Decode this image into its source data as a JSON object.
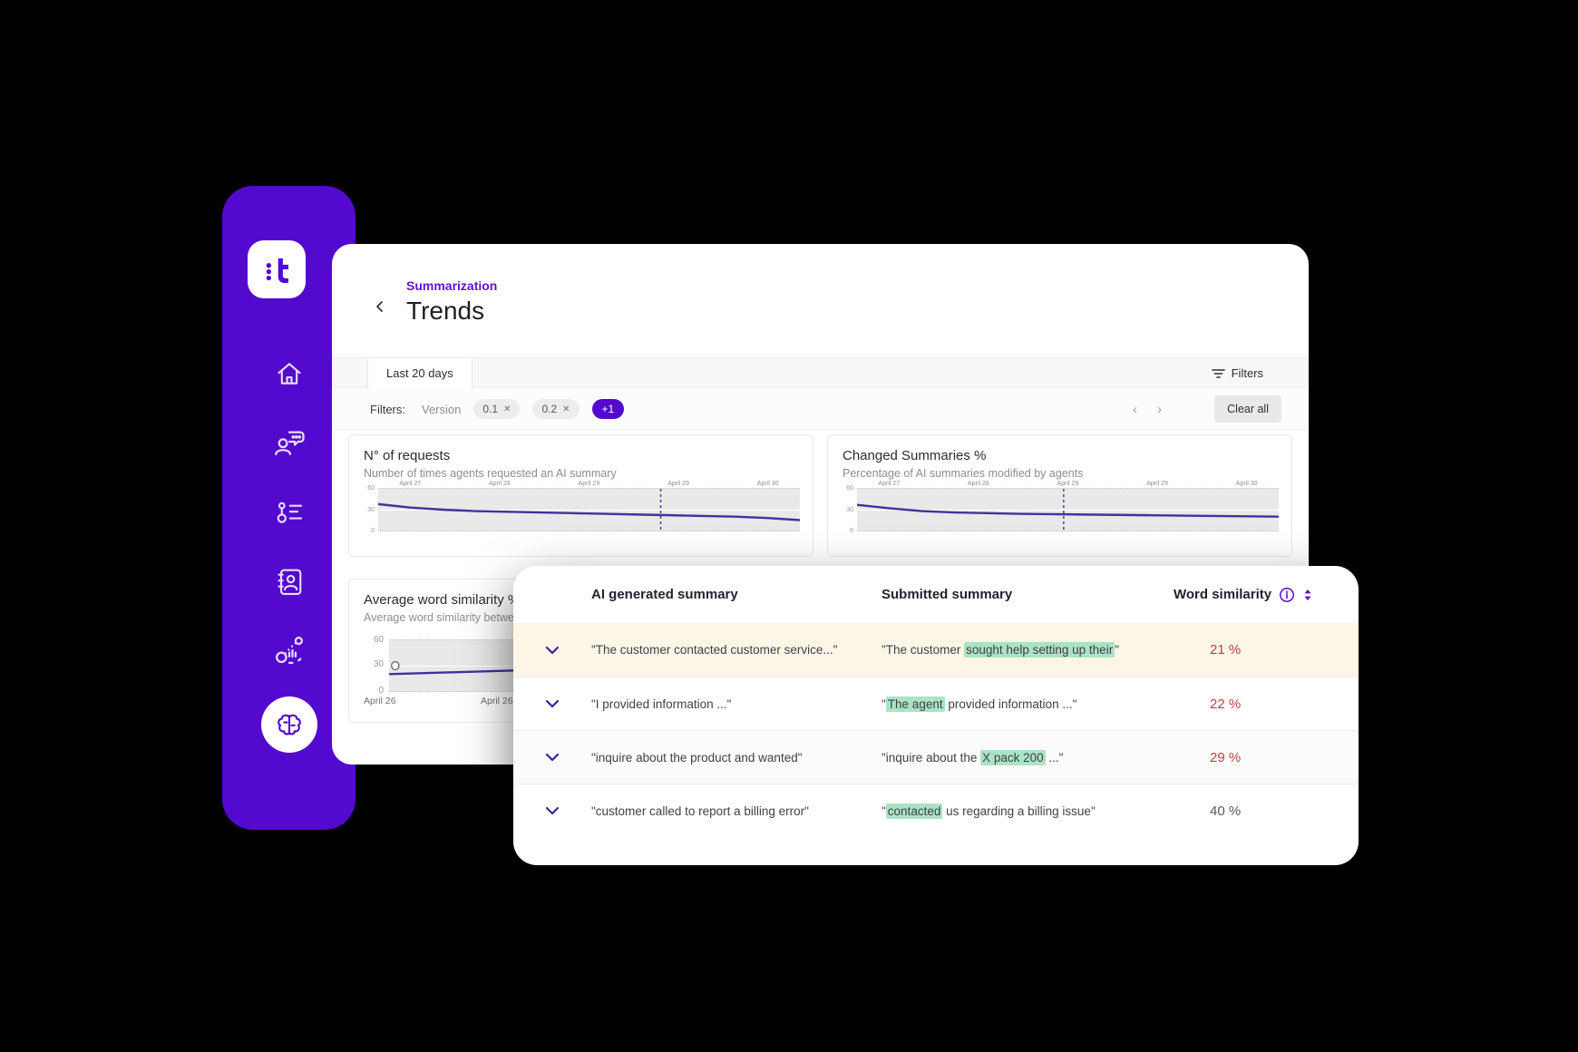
{
  "colors": {
    "brand_purple": "#5409cf",
    "breadcrumb_purple": "#6013d6",
    "chart_line_purple": "#44309f",
    "highlight_green": "#abe3c5",
    "negative_red": "#c2403f",
    "first_row_cream": "#fdf6e7"
  },
  "sidebar": {
    "logo_text": "t",
    "nav": [
      {
        "name": "home"
      },
      {
        "name": "conversations"
      },
      {
        "name": "flows"
      },
      {
        "name": "contacts"
      },
      {
        "name": "analytics"
      },
      {
        "name": "ai-assist"
      }
    ]
  },
  "page": {
    "back_icon": "back-chevron",
    "breadcrumb": "Summarization",
    "title": "Trends"
  },
  "toolbar": {
    "active_tab": "Last 20 days",
    "filters_button": "Filters"
  },
  "filter_bar": {
    "label": "Filters:",
    "field_label": "Version",
    "chips": [
      "0.1",
      "0.2"
    ],
    "chip_close": "✕",
    "overflow_chip": "+1",
    "prev_icon": "‹",
    "next_icon": "›",
    "clear_button": "Clear all"
  },
  "chart_data": [
    {
      "type": "line",
      "title": "N° of requests",
      "subtitle": "Number of times agents requested an AI summary",
      "ylabel": "",
      "xlabel": "",
      "ylim": [
        0,
        60
      ],
      "y_ticks": [
        "60",
        "30",
        "0"
      ],
      "x_ticks": [
        "April 27",
        "April 28",
        "April 29",
        "April 29",
        "April 30"
      ],
      "values": [
        38,
        33,
        30,
        28,
        27,
        26,
        25,
        24,
        23,
        22,
        21,
        20,
        18,
        15
      ],
      "dashed_x": 0.67,
      "grid": "band"
    },
    {
      "type": "line",
      "title": "Changed Summaries %",
      "subtitle": "Percentage of AI summaries modified by agents",
      "ylabel": "",
      "xlabel": "",
      "ylim": [
        0,
        60
      ],
      "y_ticks": [
        "60",
        "30",
        "0"
      ],
      "x_ticks": [
        "April 27",
        "April 28",
        "April 29",
        "April 29",
        "April 30"
      ],
      "values": [
        37,
        32,
        28,
        26,
        25,
        24,
        23.5,
        23,
        22.5,
        22,
        21.5,
        21,
        20.5,
        20
      ],
      "dashed_x": 0.49,
      "grid": "band"
    },
    {
      "type": "line",
      "title": "Average word similarity %",
      "subtitle": "Average word similarity between A",
      "ylabel": "",
      "xlabel": "",
      "ylim": [
        0,
        60
      ],
      "y_ticks": [
        "60",
        "30",
        "0"
      ],
      "x_ticks": [
        "April 26",
        "April 26"
      ],
      "values": [
        20,
        22,
        24,
        26,
        28,
        30,
        32,
        34
      ],
      "marker": {
        "x": 0.015,
        "value": 30
      },
      "grid": "band"
    }
  ],
  "table": {
    "header": {
      "col_ai": "AI generated summary",
      "col_submitted": "Submitted summary",
      "col_similarity": "Word similarity"
    },
    "rows": [
      {
        "ai": "\"The customer contacted customer service...\"",
        "submitted_pre": "\"The customer ",
        "submitted_hl": "sought help setting up their",
        "submitted_post": "\"",
        "similarity": "21 %",
        "tone": "red"
      },
      {
        "ai": "\"I provided information ...\"",
        "submitted_pre": "\"",
        "submitted_hl": "The agent",
        "submitted_post": " provided information ...\"",
        "similarity": "22 %",
        "tone": "red"
      },
      {
        "ai": "\"inquire about the product and wanted\"",
        "submitted_pre": "\"inquire about the ",
        "submitted_hl": "X pack 200",
        "submitted_post": " ...\"",
        "similarity": "29 %",
        "tone": "red"
      },
      {
        "ai": "\"customer called to report a billing error\"",
        "submitted_pre": "\"",
        "submitted_hl": "contacted",
        "submitted_post": " us regarding a billing issue\"",
        "similarity": "40 %",
        "tone": "neutral"
      }
    ]
  }
}
